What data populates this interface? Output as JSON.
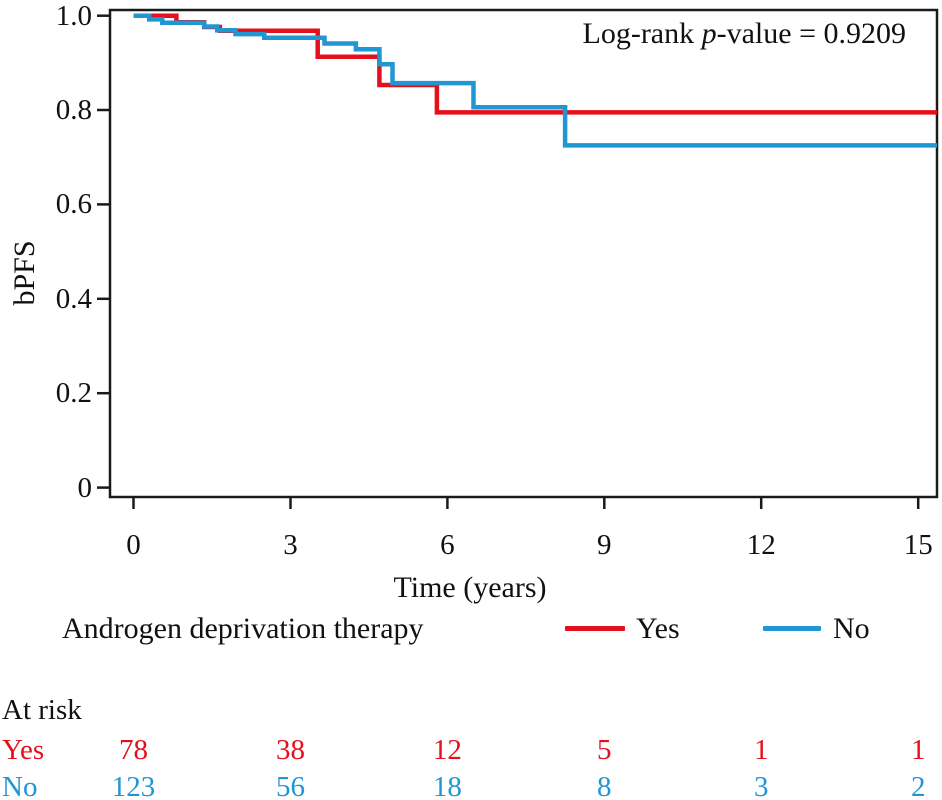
{
  "annotation": {
    "prefix": "Log-rank ",
    "italic": "p",
    "suffix": "-value = 0.9209"
  },
  "axes": {
    "ylabel": "bPFS",
    "xlabel": "Time (years)",
    "ytick_labels": [
      "1.0",
      "0.8",
      "0.6",
      "0.4",
      "0.2",
      "0"
    ],
    "ytick_values": [
      1.0,
      0.8,
      0.6,
      0.4,
      0.2,
      0
    ],
    "xtick_labels": [
      "0",
      "3",
      "6",
      "9",
      "12",
      "15"
    ],
    "xtick_values": [
      0,
      3,
      6,
      9,
      12,
      15
    ]
  },
  "legend": {
    "label": "Androgen deprivation therapy",
    "items": [
      {
        "name": "Yes",
        "color": "#e6101c"
      },
      {
        "name": "No",
        "color": "#2096d3"
      }
    ]
  },
  "at_risk": {
    "header": "At risk",
    "rows": [
      {
        "label": "Yes",
        "color": "#e6101c",
        "counts": [
          "78",
          "38",
          "12",
          "5",
          "1",
          "1"
        ]
      },
      {
        "label": "No",
        "color": "#2096d3",
        "counts": [
          "123",
          "56",
          "18",
          "8",
          "3",
          "2"
        ]
      }
    ]
  },
  "chart_data": {
    "type": "line",
    "subtype": "kaplan-meier-step",
    "title": "Log-rank p-value = 0.9209",
    "xlabel": "Time (years)",
    "ylabel": "bPFS",
    "xlim": [
      -0.45,
      15.36
    ],
    "ylim": [
      -0.02,
      1.012
    ],
    "grid": false,
    "legend_position": "bottom",
    "colors": {
      "yes": "#e6101c",
      "no": "#2096d3",
      "axis": "#1a1a1a"
    },
    "series": [
      {
        "name": "Yes",
        "color": "#e6101c",
        "steps": [
          [
            0,
            1.0
          ],
          [
            0.82,
            0.986
          ],
          [
            1.35,
            0.976
          ],
          [
            1.65,
            0.968
          ],
          [
            3.52,
            0.913
          ],
          [
            4.7,
            0.853
          ],
          [
            5.8,
            0.795
          ]
        ]
      },
      {
        "name": "No",
        "color": "#2096d3",
        "steps": [
          [
            0,
            1.0
          ],
          [
            0.3,
            0.992
          ],
          [
            0.55,
            0.985
          ],
          [
            1.35,
            0.977
          ],
          [
            1.6,
            0.969
          ],
          [
            1.95,
            0.961
          ],
          [
            2.5,
            0.953
          ],
          [
            3.65,
            0.941
          ],
          [
            4.25,
            0.929
          ],
          [
            4.7,
            0.897
          ],
          [
            4.95,
            0.857
          ],
          [
            6.5,
            0.806
          ],
          [
            8.25,
            0.725
          ]
        ]
      }
    ],
    "at_risk": {
      "times": [
        0,
        3,
        6,
        9,
        12,
        15
      ],
      "Yes": [
        78,
        38,
        12,
        5,
        1,
        1
      ],
      "No": [
        123,
        56,
        18,
        8,
        3,
        2
      ]
    }
  }
}
